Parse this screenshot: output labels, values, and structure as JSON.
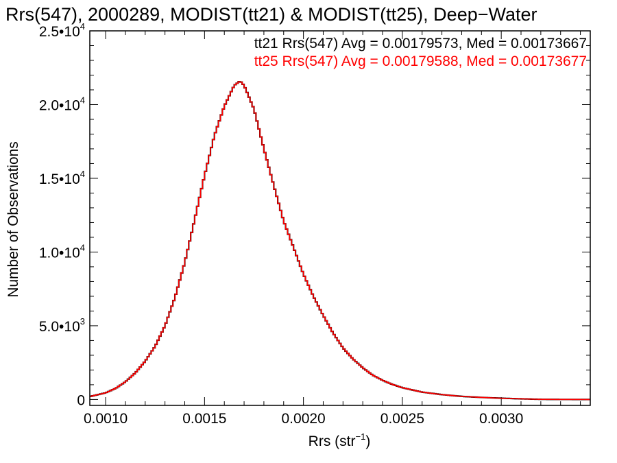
{
  "chart_data": {
    "type": "histogram",
    "title": "Rrs(547), 2000289, MODIST(tt21) & MODIST(tt25), Deep−Water",
    "xlabel_main": "Rrs (str",
    "xlabel_sup": "−1",
    "xlabel_end": ")",
    "ylabel": "Number of Observations",
    "xlim": [
      0.00092,
      0.00345
    ],
    "ylim": [
      -400,
      25000
    ],
    "x_ticks": [
      {
        "value": 0.001,
        "label": "0.0010"
      },
      {
        "value": 0.0015,
        "label": "0.0015"
      },
      {
        "value": 0.002,
        "label": "0.0020"
      },
      {
        "value": 0.0025,
        "label": "0.0025"
      },
      {
        "value": 0.003,
        "label": "0.0030"
      }
    ],
    "y_ticks": [
      {
        "value": 0,
        "mant": "0",
        "sup": ""
      },
      {
        "value": 5000,
        "mant": "5.0•10",
        "sup": "3"
      },
      {
        "value": 10000,
        "mant": "1.0•10",
        "sup": "4"
      },
      {
        "value": 15000,
        "mant": "1.5•10",
        "sup": "4"
      },
      {
        "value": 20000,
        "mant": "2.0•10",
        "sup": "4"
      },
      {
        "value": 25000,
        "mant": "2.5•10",
        "sup": "4"
      }
    ],
    "x_minor_step": 0.0001,
    "y_minor_step": 1000,
    "grid": false,
    "legend_position": "top-right",
    "legend": [
      {
        "text": "tt21 Rrs(547) Avg = 0.00179573, Med = 0.00173667",
        "color": "#000000"
      },
      {
        "text": "tt25 Rrs(547) Avg = 0.00179588, Med = 0.00173677",
        "color": "#ff0000"
      }
    ],
    "series": [
      {
        "name": "tt21",
        "color": "#000000"
      },
      {
        "name": "tt25",
        "color": "#ff0000"
      }
    ],
    "bin_width": 1e-05,
    "curve_points": [
      [
        0.00092,
        200
      ],
      [
        0.001,
        450
      ],
      [
        0.00105,
        750
      ],
      [
        0.0011,
        1200
      ],
      [
        0.00115,
        1800
      ],
      [
        0.0012,
        2600
      ],
      [
        0.00125,
        3600
      ],
      [
        0.0013,
        5000
      ],
      [
        0.00135,
        6900
      ],
      [
        0.0014,
        9300
      ],
      [
        0.00145,
        12200
      ],
      [
        0.0015,
        15200
      ],
      [
        0.00155,
        17900
      ],
      [
        0.0016,
        19900
      ],
      [
        0.00165,
        21300
      ],
      [
        0.00168,
        21600
      ],
      [
        0.0017,
        21300
      ],
      [
        0.00175,
        19700
      ],
      [
        0.0018,
        17000
      ],
      [
        0.00185,
        14500
      ],
      [
        0.0019,
        12100
      ],
      [
        0.00195,
        10300
      ],
      [
        0.002,
        8500
      ],
      [
        0.00205,
        7000
      ],
      [
        0.0021,
        5700
      ],
      [
        0.00215,
        4500
      ],
      [
        0.0022,
        3500
      ],
      [
        0.00225,
        2750
      ],
      [
        0.0023,
        2150
      ],
      [
        0.00235,
        1650
      ],
      [
        0.0024,
        1300
      ],
      [
        0.00245,
        1020
      ],
      [
        0.0025,
        800
      ],
      [
        0.0026,
        500
      ],
      [
        0.0027,
        330
      ],
      [
        0.0028,
        210
      ],
      [
        0.0029,
        140
      ],
      [
        0.003,
        85
      ],
      [
        0.0031,
        45
      ],
      [
        0.0032,
        10
      ],
      [
        0.0033,
        5
      ],
      [
        0.00345,
        0
      ]
    ]
  }
}
